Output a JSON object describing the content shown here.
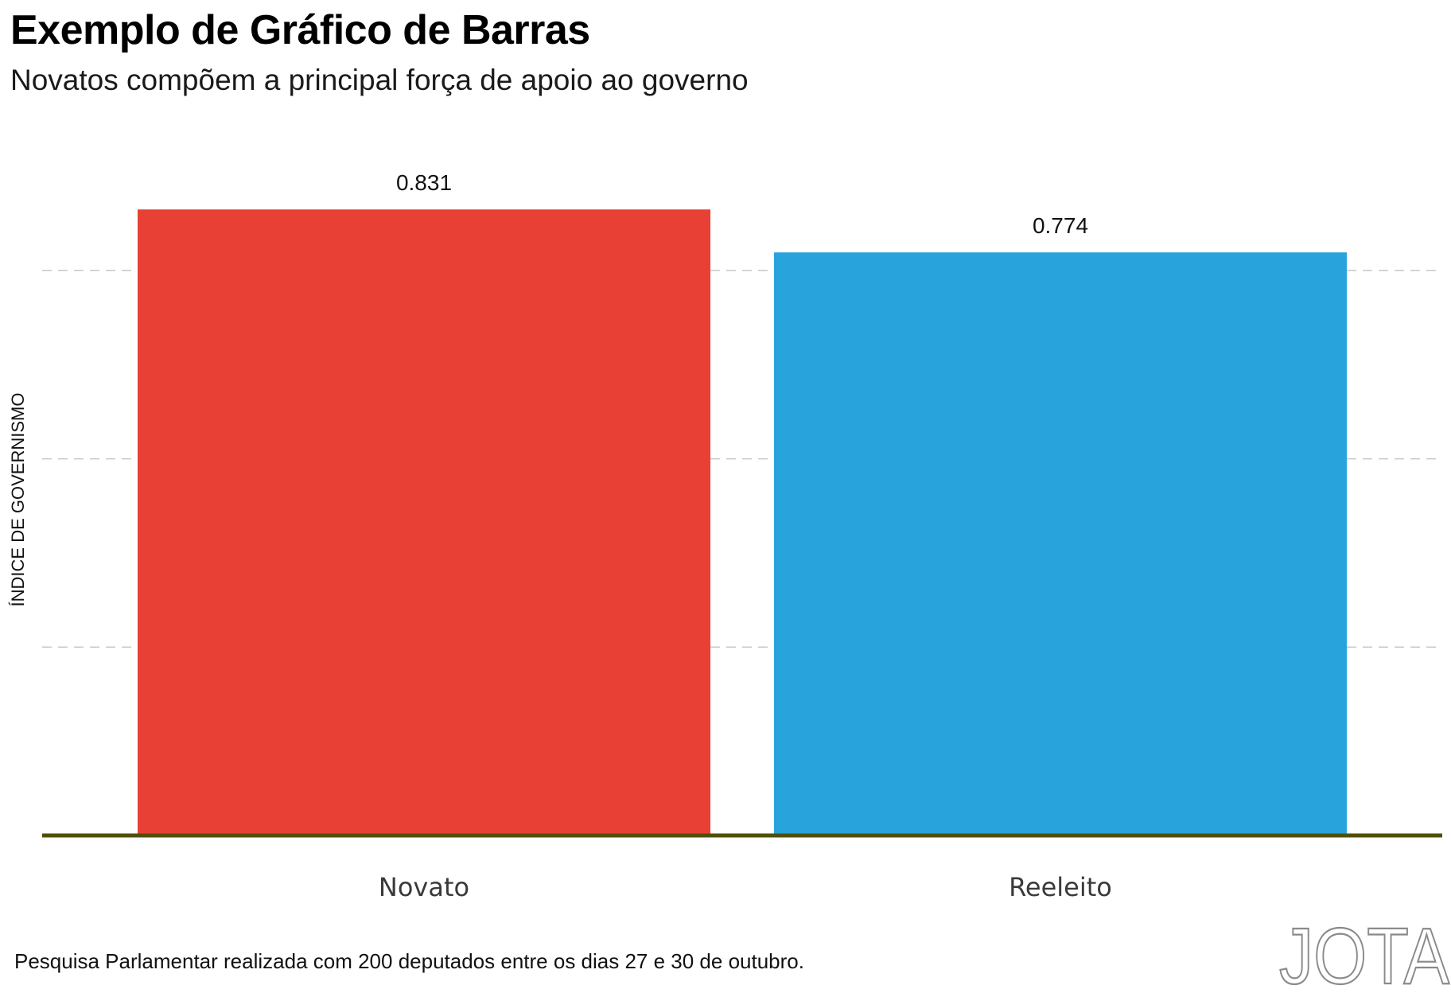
{
  "title": "Exemplo de Gráfico de Barras",
  "subtitle": "Novatos compõem a principal força de apoio ao governo",
  "footer": "Pesquisa Parlamentar realizada com 200 deputados entre os dias 27 e 30 de outubro.",
  "logo": "JOTA",
  "colors": {
    "novato": "#e84034",
    "reeleito": "#29a3dc",
    "baseline": "#4f4f0c",
    "grid": "#c8c8c8"
  },
  "chart_data": {
    "type": "bar",
    "categories": [
      "Novato",
      "Reeleito"
    ],
    "values": [
      0.831,
      0.774
    ],
    "value_labels": [
      "0.831",
      "0.774"
    ],
    "xlabel": "",
    "ylabel": "ÍNDICE DE GOVERNISMO",
    "ylim": [
      0,
      0.864
    ],
    "gridlines": [
      0.25,
      0.5,
      0.75
    ],
    "grid": true,
    "legend": false,
    "ytick_labels_shown": false
  }
}
